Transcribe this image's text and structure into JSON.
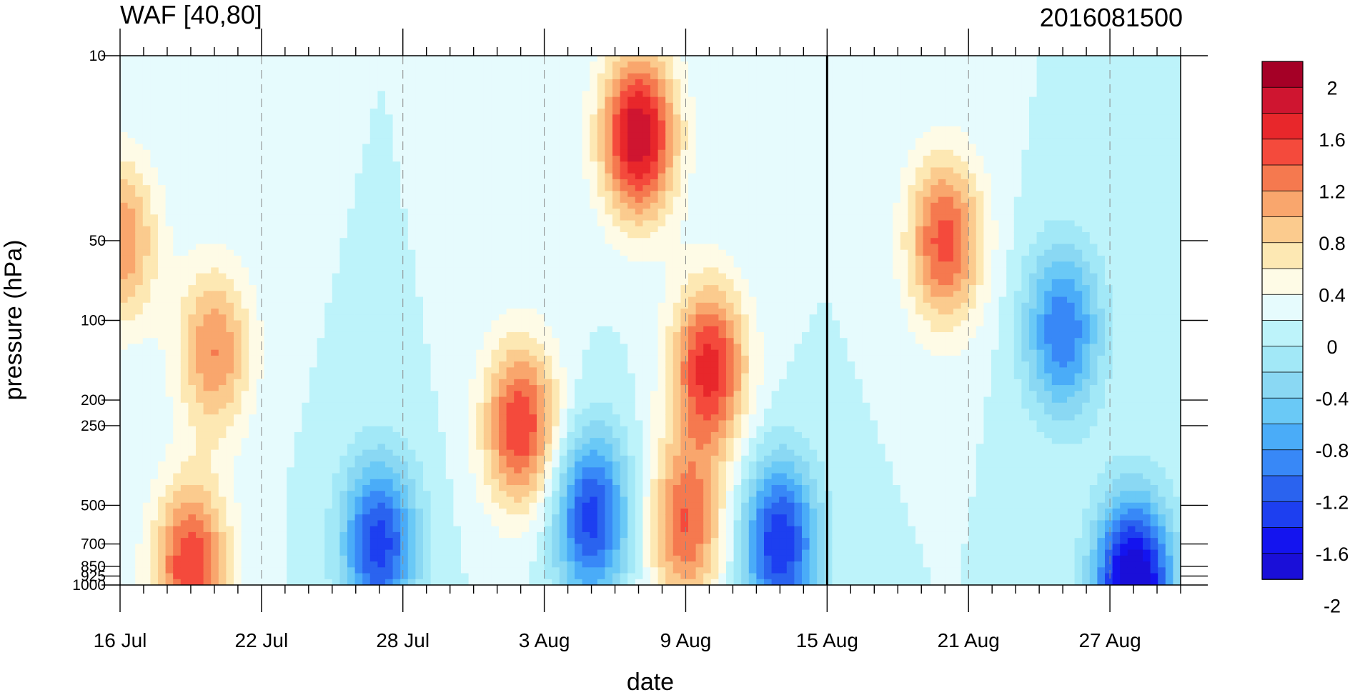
{
  "header": {
    "title_left": "WAF [40,80]",
    "title_right": "2016081500"
  },
  "chart_data": {
    "type": "heatmap",
    "title": "WAF [40,80]",
    "subtitle": "2016081500",
    "xlabel": "date",
    "ylabel": "pressure (hPa)",
    "y_scale": "log",
    "y_reversed": true,
    "ylim": [
      1000,
      10
    ],
    "xlim": [
      "2016-07-16",
      "2016-08-30"
    ],
    "x_ticks": [
      "16 Jul",
      "22 Jul",
      "28 Jul",
      "3 Aug",
      "9 Aug",
      "15 Aug",
      "21 Aug",
      "27 Aug"
    ],
    "y_ticks": [
      "10",
      "50",
      "100",
      "200",
      "250",
      "500",
      "700",
      "850",
      "925",
      "1000"
    ],
    "vertical_marker": "15 Aug",
    "grid": "dashed vertical at labeled dates",
    "legend": {
      "position": "right",
      "type": "colorbar",
      "labels": [
        "2",
        "1.6",
        "1.2",
        "0.8",
        "0.4",
        "0",
        "-0.4",
        "-0.8",
        "-1.2",
        "-1.6",
        "-2"
      ],
      "colors": [
        "#a50026",
        "#cf1530",
        "#e8272b",
        "#f44a3c",
        "#f5794f",
        "#f9a66d",
        "#fbcb8e",
        "#fde8b3",
        "#fefbe6",
        "#e6fbfd",
        "#bdf3fa",
        "#a2e8f7",
        "#8ad8f3",
        "#6ac9f6",
        "#4aacf8",
        "#3888f7",
        "#2a63ef",
        "#1d3ff0",
        "#1414ef",
        "#1a0fd8"
      ]
    },
    "features": [
      {
        "name": "positive core",
        "center": [
          "2016-08-07",
          20
        ],
        "value": 1.8
      },
      {
        "name": "positive core",
        "center": [
          "2016-08-10",
          150
        ],
        "value": 1.5
      },
      {
        "name": "positive core",
        "center": [
          "2016-08-09",
          600
        ],
        "value": 1.2
      },
      {
        "name": "positive core",
        "center": [
          "2016-08-02",
          250
        ],
        "value": 1.4
      },
      {
        "name": "positive core",
        "center": [
          "2016-07-20",
          130
        ],
        "value": 1.0
      },
      {
        "name": "positive core",
        "center": [
          "2016-07-19",
          850
        ],
        "value": 1.4
      },
      {
        "name": "positive core",
        "center": [
          "2016-07-16",
          50
        ],
        "value": 1.0
      },
      {
        "name": "positive core",
        "center": [
          "2016-08-20",
          50
        ],
        "value": 1.3
      },
      {
        "name": "negative core",
        "center": [
          "2016-08-28",
          1000
        ],
        "value": -2.2
      },
      {
        "name": "negative core",
        "center": [
          "2016-08-25",
          110
        ],
        "value": -1.2
      },
      {
        "name": "negative core",
        "center": [
          "2016-07-27",
          700
        ],
        "value": -1.5
      },
      {
        "name": "negative core",
        "center": [
          "2016-08-05",
          550
        ],
        "value": -1.5
      },
      {
        "name": "negative core",
        "center": [
          "2016-08-13",
          700
        ],
        "value": -1.6
      }
    ]
  }
}
